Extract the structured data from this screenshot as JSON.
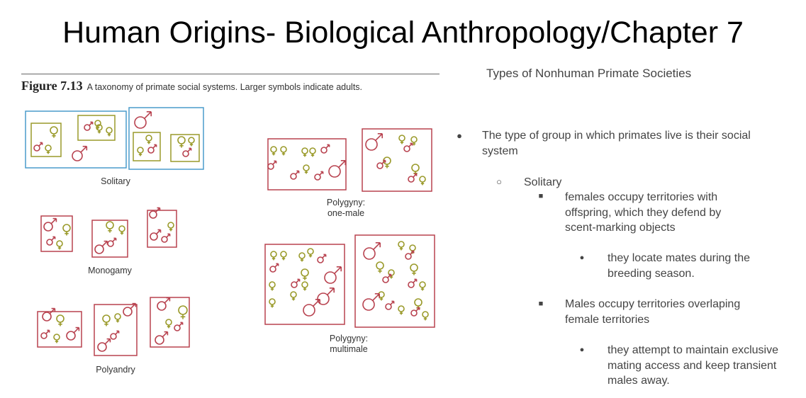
{
  "slide": {
    "title": "Human Origins- Biological Anthropology/Chapter 7",
    "subtitle": "Types of Nonhuman Primate Societies"
  },
  "figure": {
    "number": "Figure 7.13",
    "caption": "A taxonomy of primate social systems. Larger symbols indicate adults.",
    "labels": {
      "solitary": "Solitary",
      "monogamy": "Monogamy",
      "polyandry": "Polyandry",
      "polygyny_one_line1": "Polygyny:",
      "polygyny_one_line2": "one-male",
      "polygyny_multi_line1": "Polygyny:",
      "polygyny_multi_line2": "multimale"
    },
    "colors": {
      "solitary_border": "#4a9ccc",
      "group_border": "#b8424f",
      "female": "#9a9a2a",
      "male": "#b8424f"
    }
  },
  "bullets": {
    "b1": "The type of group in which  primates live is their social system",
    "b2": "Solitary",
    "b3": "females occupy territories with offspring, which they defend by scent-marking objects",
    "b4": "they locate mates during the breeding season.",
    "b5": "Males occupy territories overlaping female territories",
    "b6": "they attempt to maintain exclusive mating access and keep transient males away."
  },
  "markers": {
    "disc": "●",
    "circle": "○",
    "square": "■"
  }
}
